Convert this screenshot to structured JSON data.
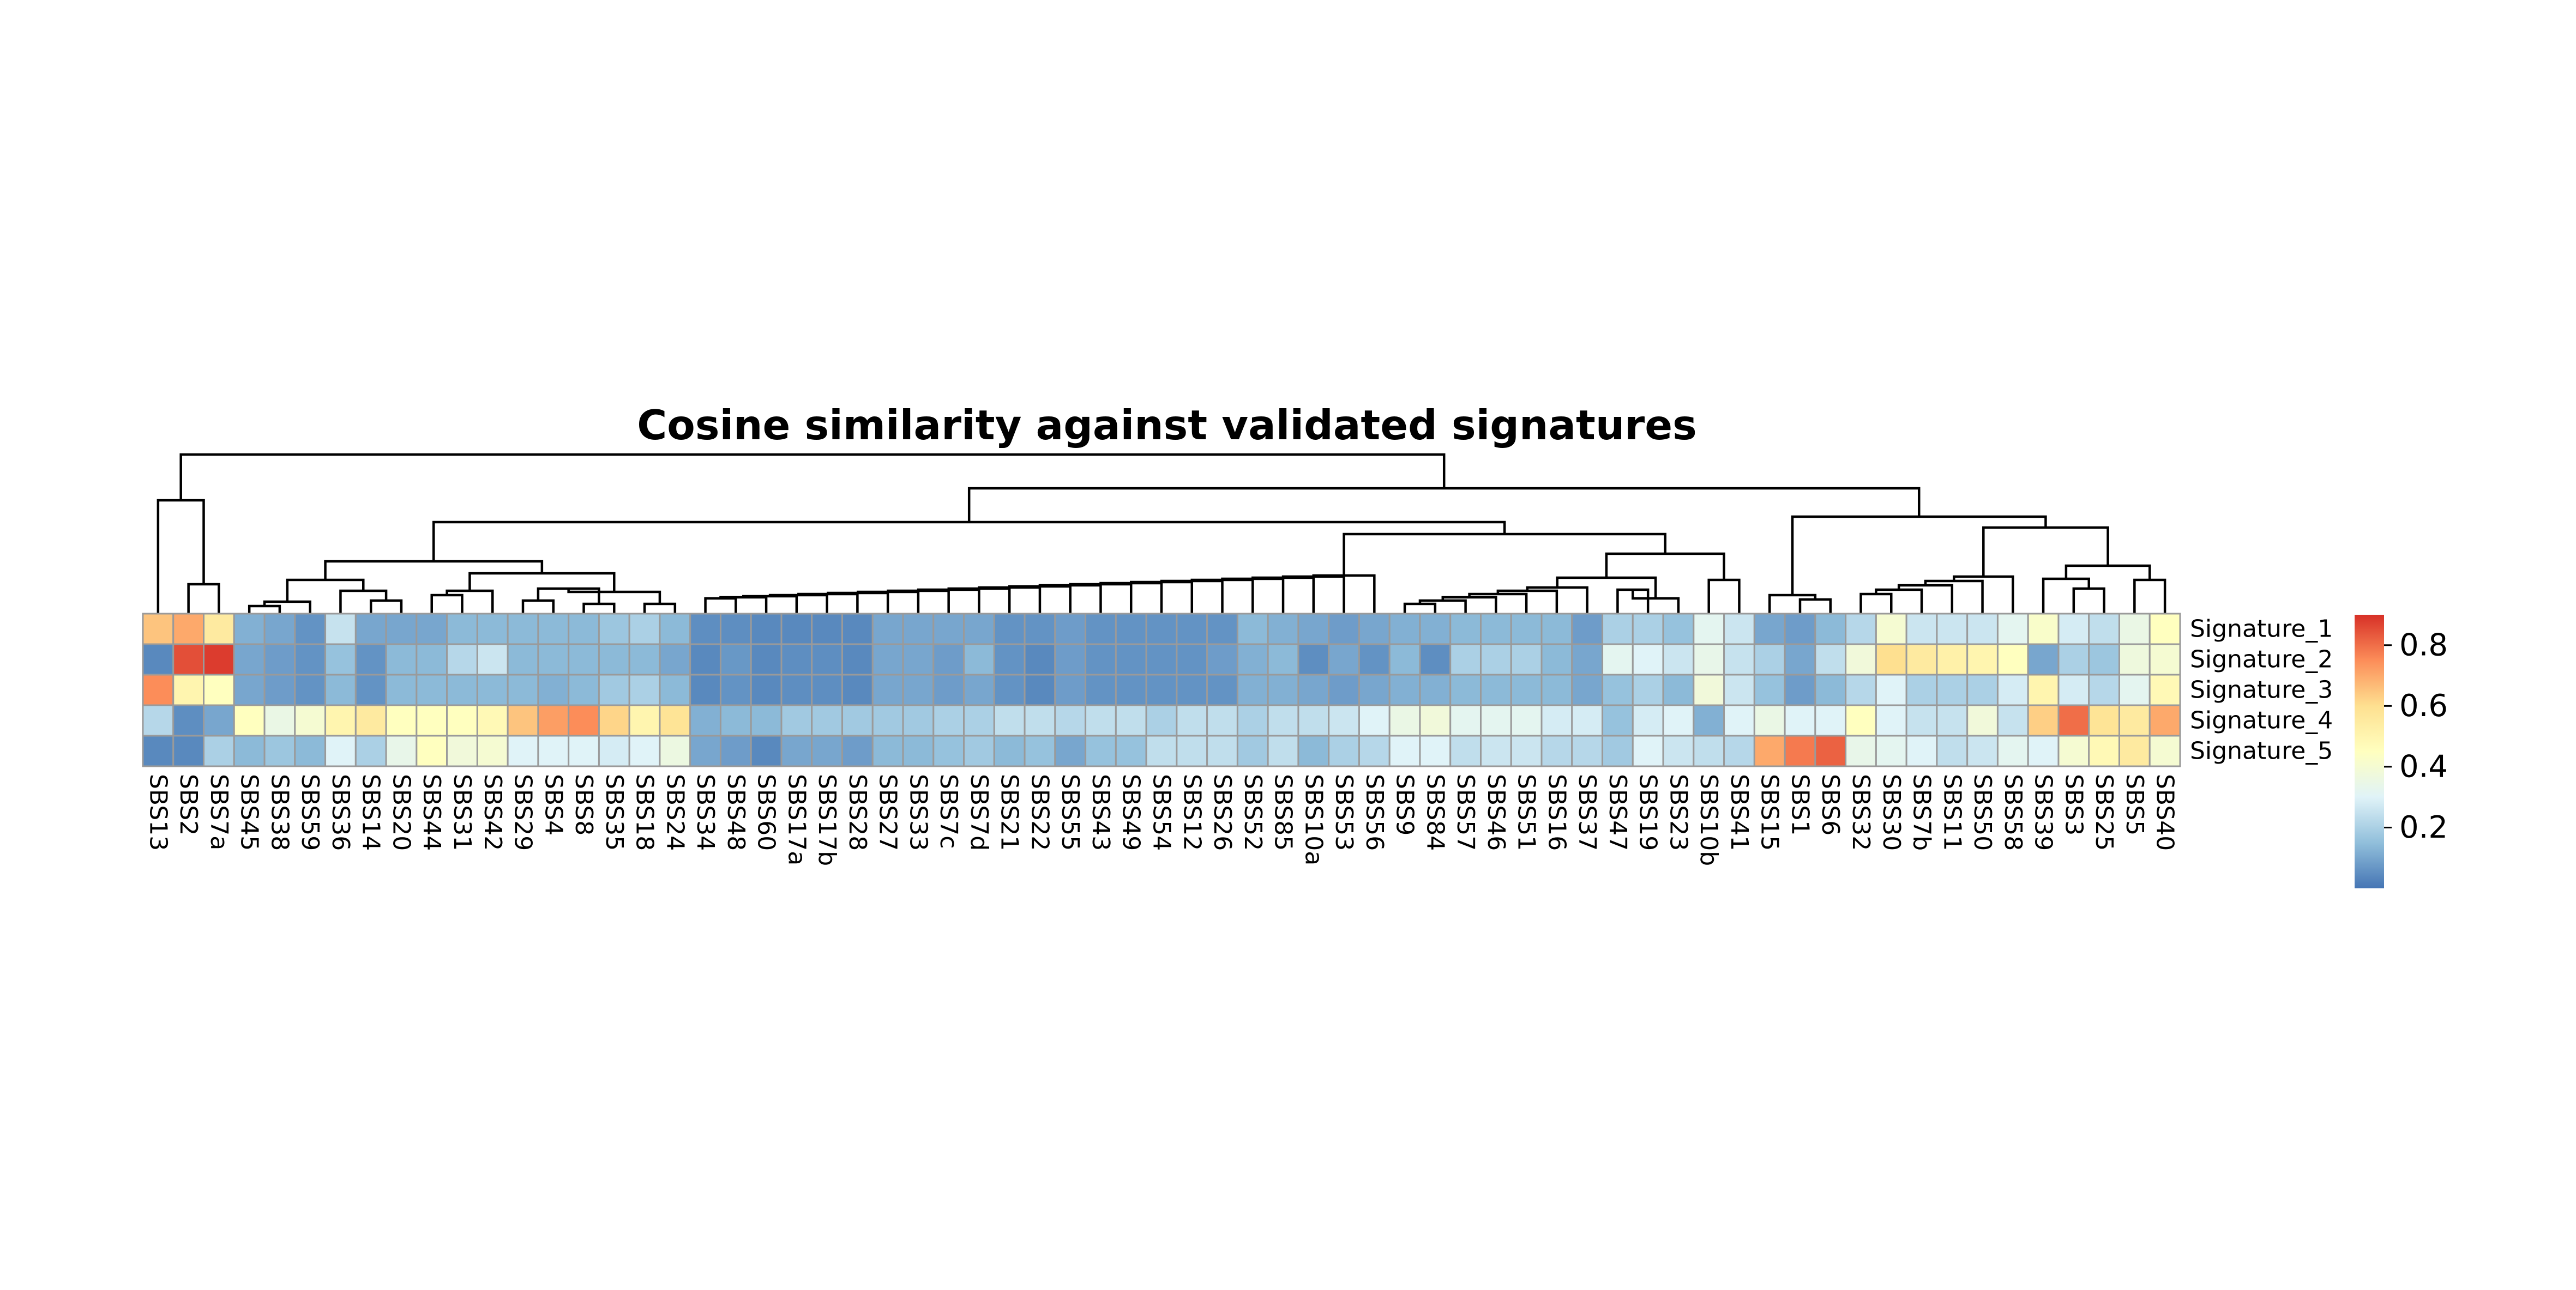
{
  "chart_data": {
    "type": "heatmap",
    "title": "Cosine similarity against validated signatures",
    "rows": [
      "Signature_1",
      "Signature_2",
      "Signature_3",
      "Signature_4",
      "Signature_5"
    ],
    "columns": [
      "SBS13",
      "SBS2",
      "SBS7a",
      "SBS45",
      "SBS38",
      "SBS59",
      "SBS36",
      "SBS14",
      "SBS20",
      "SBS44",
      "SBS31",
      "SBS42",
      "SBS29",
      "SBS4",
      "SBS8",
      "SBS35",
      "SBS18",
      "SBS24",
      "SBS34",
      "SBS48",
      "SBS60",
      "SBS17a",
      "SBS17b",
      "SBS28",
      "SBS27",
      "SBS33",
      "SBS7c",
      "SBS7d",
      "SBS21",
      "SBS22",
      "SBS55",
      "SBS43",
      "SBS49",
      "SBS54",
      "SBS12",
      "SBS26",
      "SBS52",
      "SBS85",
      "SBS10a",
      "SBS53",
      "SBS56",
      "SBS9",
      "SBS84",
      "SBS57",
      "SBS46",
      "SBS51",
      "SBS16",
      "SBS37",
      "SBS47",
      "SBS19",
      "SBS23",
      "SBS10b",
      "SBS41",
      "SBS15",
      "SBS1",
      "SBS6",
      "SBS32",
      "SBS30",
      "SBS7b",
      "SBS11",
      "SBS50",
      "SBS58",
      "SBS39",
      "SBS3",
      "SBS25",
      "SBS5",
      "SBS40"
    ],
    "values": [
      [
        0.65,
        0.7,
        0.55,
        0.12,
        0.1,
        0.06,
        0.25,
        0.1,
        0.1,
        0.1,
        0.14,
        0.14,
        0.14,
        0.14,
        0.14,
        0.17,
        0.2,
        0.14,
        0.05,
        0.05,
        0.04,
        0.04,
        0.04,
        0.04,
        0.1,
        0.1,
        0.1,
        0.1,
        0.06,
        0.06,
        0.08,
        0.06,
        0.06,
        0.06,
        0.06,
        0.06,
        0.14,
        0.12,
        0.1,
        0.08,
        0.1,
        0.12,
        0.12,
        0.14,
        0.14,
        0.14,
        0.14,
        0.08,
        0.2,
        0.2,
        0.16,
        0.32,
        0.26,
        0.1,
        0.08,
        0.14,
        0.22,
        0.4,
        0.26,
        0.26,
        0.26,
        0.32,
        0.42,
        0.28,
        0.24,
        0.35,
        0.45
      ],
      [
        0.04,
        0.85,
        0.88,
        0.1,
        0.08,
        0.06,
        0.16,
        0.06,
        0.14,
        0.14,
        0.22,
        0.26,
        0.14,
        0.14,
        0.14,
        0.14,
        0.14,
        0.1,
        0.04,
        0.07,
        0.04,
        0.05,
        0.05,
        0.04,
        0.1,
        0.1,
        0.08,
        0.14,
        0.06,
        0.04,
        0.08,
        0.06,
        0.06,
        0.06,
        0.06,
        0.08,
        0.12,
        0.14,
        0.05,
        0.1,
        0.06,
        0.14,
        0.05,
        0.2,
        0.2,
        0.2,
        0.14,
        0.1,
        0.32,
        0.3,
        0.26,
        0.34,
        0.25,
        0.2,
        0.1,
        0.24,
        0.38,
        0.6,
        0.55,
        0.52,
        0.5,
        0.45,
        0.1,
        0.2,
        0.17,
        0.37,
        0.4
      ],
      [
        0.75,
        0.5,
        0.45,
        0.1,
        0.08,
        0.06,
        0.14,
        0.06,
        0.14,
        0.14,
        0.14,
        0.14,
        0.14,
        0.12,
        0.14,
        0.18,
        0.2,
        0.14,
        0.04,
        0.06,
        0.04,
        0.05,
        0.05,
        0.04,
        0.1,
        0.1,
        0.08,
        0.1,
        0.06,
        0.04,
        0.08,
        0.06,
        0.06,
        0.06,
        0.06,
        0.06,
        0.12,
        0.12,
        0.1,
        0.08,
        0.1,
        0.12,
        0.12,
        0.14,
        0.14,
        0.14,
        0.14,
        0.1,
        0.16,
        0.2,
        0.14,
        0.38,
        0.26,
        0.16,
        0.08,
        0.14,
        0.22,
        0.3,
        0.2,
        0.2,
        0.2,
        0.28,
        0.5,
        0.28,
        0.22,
        0.32,
        0.48
      ],
      [
        0.22,
        0.05,
        0.1,
        0.45,
        0.35,
        0.4,
        0.5,
        0.55,
        0.45,
        0.45,
        0.45,
        0.48,
        0.65,
        0.72,
        0.75,
        0.62,
        0.5,
        0.58,
        0.12,
        0.14,
        0.14,
        0.18,
        0.18,
        0.18,
        0.18,
        0.18,
        0.2,
        0.2,
        0.24,
        0.24,
        0.22,
        0.24,
        0.24,
        0.2,
        0.24,
        0.24,
        0.2,
        0.24,
        0.24,
        0.26,
        0.3,
        0.35,
        0.38,
        0.32,
        0.32,
        0.32,
        0.28,
        0.28,
        0.16,
        0.28,
        0.3,
        0.12,
        0.3,
        0.35,
        0.3,
        0.3,
        0.45,
        0.3,
        0.25,
        0.25,
        0.38,
        0.25,
        0.63,
        0.8,
        0.58,
        0.55,
        0.7
      ],
      [
        0.04,
        0.04,
        0.2,
        0.14,
        0.17,
        0.14,
        0.3,
        0.2,
        0.34,
        0.45,
        0.38,
        0.4,
        0.3,
        0.3,
        0.3,
        0.28,
        0.3,
        0.36,
        0.1,
        0.08,
        0.04,
        0.1,
        0.1,
        0.08,
        0.14,
        0.14,
        0.16,
        0.18,
        0.14,
        0.16,
        0.1,
        0.16,
        0.16,
        0.24,
        0.24,
        0.24,
        0.18,
        0.24,
        0.14,
        0.2,
        0.22,
        0.3,
        0.3,
        0.24,
        0.26,
        0.26,
        0.22,
        0.22,
        0.18,
        0.3,
        0.26,
        0.24,
        0.22,
        0.7,
        0.78,
        0.82,
        0.34,
        0.32,
        0.3,
        0.24,
        0.26,
        0.32,
        0.3,
        0.4,
        0.48,
        0.55,
        0.4
      ]
    ],
    "colorbar": {
      "min": 0.0,
      "max": 0.9,
      "ticks": [
        "0.2",
        "0.4",
        "0.6",
        "0.8"
      ]
    },
    "colors": [
      "#4575b4",
      "#91bfdb",
      "#e0f3f8",
      "#ffffbf",
      "#fee090",
      "#fc8d59",
      "#d73027"
    ],
    "column_dendrogram": true
  }
}
